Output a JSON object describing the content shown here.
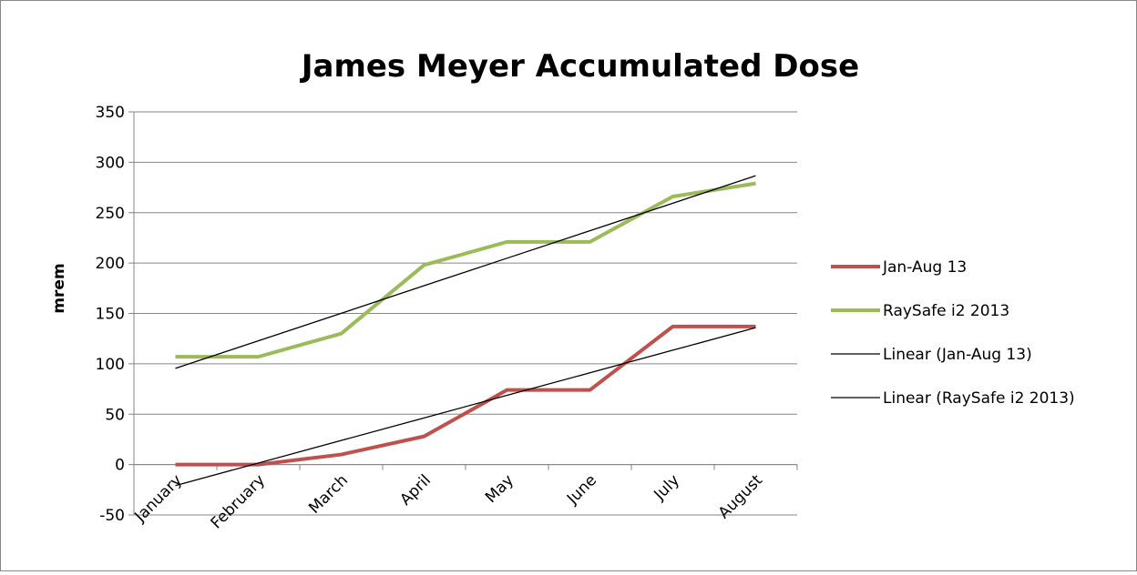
{
  "chart_data": {
    "type": "line",
    "title": "James Meyer Accumulated Dose",
    "y_label": "mrem",
    "categories": [
      "January",
      "February",
      "March",
      "April",
      "May",
      "June",
      "July",
      "August"
    ],
    "series": [
      {
        "name": "Jan-Aug 13",
        "color": "#c0504d",
        "width": 4,
        "values": [
          0,
          0,
          10,
          28,
          74,
          74,
          137,
          137
        ]
      },
      {
        "name": "RaySafe i2 2013",
        "color": "#9bbb59",
        "width": 4,
        "values": [
          107,
          107,
          130,
          198,
          221,
          221,
          266,
          279
        ]
      },
      {
        "name": "Linear (Jan-Aug 13)",
        "color": "#000000",
        "width": 1.3,
        "values": [
          -20.9,
          1.5,
          23.9,
          46.3,
          68.7,
          91.1,
          113.5,
          135.9
        ]
      },
      {
        "name": "Linear (RaySafe i2 2013)",
        "color": "#000000",
        "width": 1.3,
        "values": [
          95.5,
          122.8,
          150.1,
          177.5,
          204.8,
          232.1,
          259.4,
          286.7
        ]
      }
    ],
    "ylim": [
      -50,
      350
    ],
    "yticks": [
      -50,
      0,
      50,
      100,
      150,
      200,
      250,
      300,
      350
    ],
    "grid": true,
    "legend": "right"
  }
}
